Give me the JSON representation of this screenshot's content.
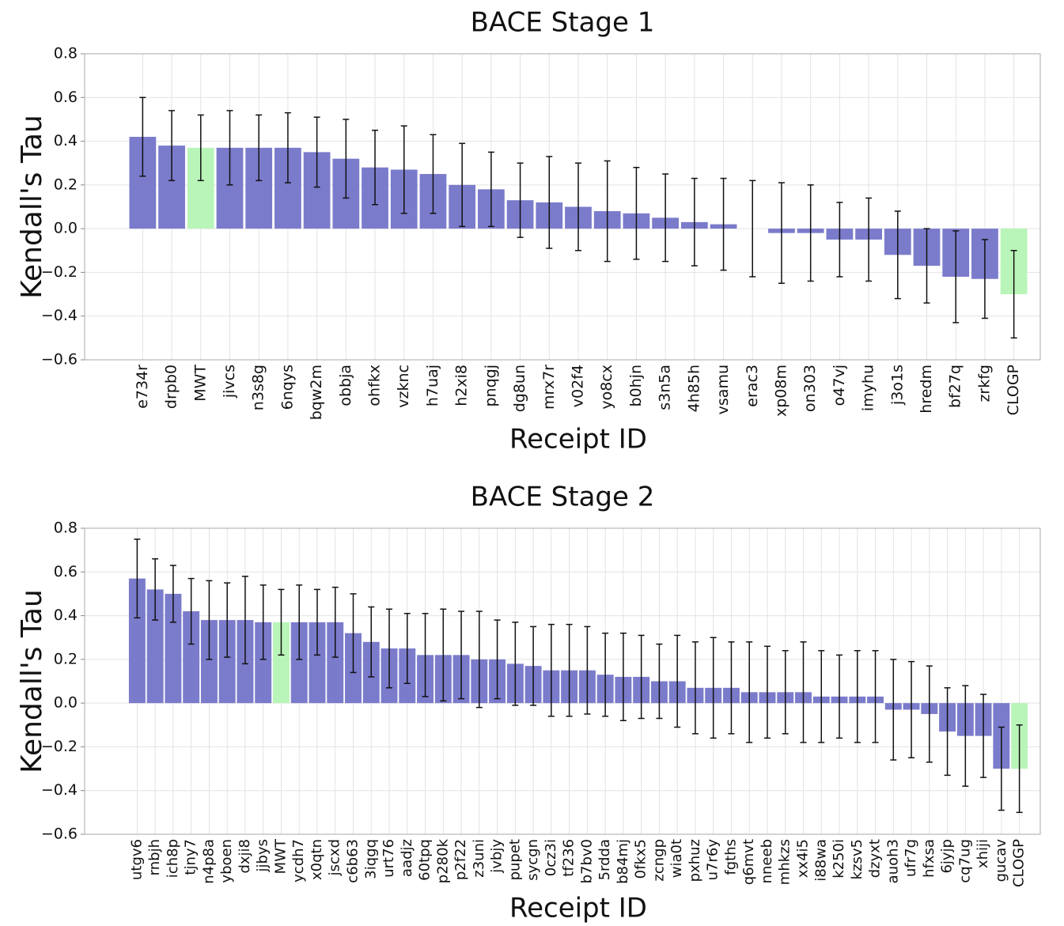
{
  "chart_data": [
    {
      "type": "bar",
      "title": "BACE Stage 1",
      "xlabel": "Receipt ID",
      "ylabel": "Kendall's Tau",
      "categories": [
        "e734r",
        "drpb0",
        "MWT",
        "jivcs",
        "n3s8g",
        "6nqys",
        "bqw2m",
        "obbja",
        "ohfkx",
        "vzknc",
        "h7uaj",
        "h2xi8",
        "pnqgj",
        "dg8un",
        "mrx7r",
        "v02f4",
        "yo8cx",
        "b0hjn",
        "s3n5a",
        "4h85h",
        "vsamu",
        "erac3",
        "xp08m",
        "on303",
        "o47vj",
        "imyhu",
        "j3o1s",
        "hredm",
        "bf27q",
        "zrkfg",
        "CLOGP"
      ],
      "values": [
        0.42,
        0.38,
        0.37,
        0.37,
        0.37,
        0.37,
        0.35,
        0.32,
        0.28,
        0.27,
        0.25,
        0.2,
        0.18,
        0.13,
        0.12,
        0.1,
        0.08,
        0.07,
        0.05,
        0.03,
        0.02,
        0.0,
        -0.02,
        -0.02,
        -0.05,
        -0.05,
        -0.12,
        -0.17,
        -0.22,
        -0.23,
        -0.3
      ],
      "errors": [
        0.18,
        0.16,
        0.15,
        0.17,
        0.15,
        0.16,
        0.16,
        0.18,
        0.17,
        0.2,
        0.18,
        0.19,
        0.17,
        0.17,
        0.21,
        0.2,
        0.23,
        0.21,
        0.2,
        0.2,
        0.21,
        0.22,
        0.23,
        0.22,
        0.17,
        0.19,
        0.2,
        0.17,
        0.21,
        0.18,
        0.2
      ],
      "colors": [
        "#7b7bcc",
        "#7b7bcc",
        "#b9f5b9",
        "#7b7bcc",
        "#7b7bcc",
        "#7b7bcc",
        "#7b7bcc",
        "#7b7bcc",
        "#7b7bcc",
        "#7b7bcc",
        "#7b7bcc",
        "#7b7bcc",
        "#7b7bcc",
        "#7b7bcc",
        "#7b7bcc",
        "#7b7bcc",
        "#7b7bcc",
        "#7b7bcc",
        "#7b7bcc",
        "#7b7bcc",
        "#7b7bcc",
        "#7b7bcc",
        "#7b7bcc",
        "#7b7bcc",
        "#7b7bcc",
        "#7b7bcc",
        "#7b7bcc",
        "#7b7bcc",
        "#7b7bcc",
        "#7b7bcc",
        "#b9f5b9"
      ],
      "ylim": [
        -0.6,
        0.8
      ],
      "yticks": [
        {
          "value": -0.6,
          "label": "−0.6"
        },
        {
          "value": -0.4,
          "label": "−0.4"
        },
        {
          "value": -0.2,
          "label": "−0.2"
        },
        {
          "value": 0,
          "label": "0.0"
        },
        {
          "value": 0.2,
          "label": "0.2"
        },
        {
          "value": 0.4,
          "label": "0.4"
        },
        {
          "value": 0.6,
          "label": "0.6"
        },
        {
          "value": 0.8,
          "label": "0.8"
        }
      ],
      "grid": true
    },
    {
      "type": "bar",
      "title": "BACE Stage 2",
      "xlabel": "Receipt ID",
      "ylabel": "Kendall's Tau",
      "categories": [
        "utgv6",
        "rnbjh",
        "ich8p",
        "tjny7",
        "n4p8a",
        "yboen",
        "dxji8",
        "jjbys",
        "MWT",
        "ycdh7",
        "x0qtn",
        "jscxd",
        "c6b63",
        "3iqgq",
        "urt76",
        "aadjz",
        "60tpq",
        "p280k",
        "p2f22",
        "z3uni",
        "jvbjy",
        "pupet",
        "sycgn",
        "0cz3i",
        "tf236",
        "b7bv0",
        "5rdda",
        "b84mj",
        "0fkx5",
        "zcngp",
        "wia0t",
        "pxhuz",
        "u7r6y",
        "fgths",
        "q6mvt",
        "nneeb",
        "mhkzs",
        "xx4i5",
        "i88wa",
        "k250i",
        "kzsv5",
        "dzyxt",
        "auoh3",
        "ufr7g",
        "hfxsa",
        "6jyjp",
        "cq7ug",
        "xhiji",
        "gucav",
        "CLOGP"
      ],
      "values": [
        0.57,
        0.52,
        0.5,
        0.42,
        0.38,
        0.38,
        0.38,
        0.37,
        0.37,
        0.37,
        0.37,
        0.37,
        0.32,
        0.28,
        0.25,
        0.25,
        0.22,
        0.22,
        0.22,
        0.2,
        0.2,
        0.18,
        0.17,
        0.15,
        0.15,
        0.15,
        0.13,
        0.12,
        0.12,
        0.1,
        0.1,
        0.07,
        0.07,
        0.07,
        0.05,
        0.05,
        0.05,
        0.05,
        0.03,
        0.03,
        0.03,
        0.03,
        -0.03,
        -0.03,
        -0.05,
        -0.13,
        -0.15,
        -0.15,
        -0.3,
        -0.3
      ],
      "errors": [
        0.18,
        0.14,
        0.13,
        0.15,
        0.18,
        0.17,
        0.2,
        0.17,
        0.15,
        0.17,
        0.15,
        0.16,
        0.18,
        0.16,
        0.18,
        0.16,
        0.19,
        0.21,
        0.2,
        0.22,
        0.18,
        0.19,
        0.18,
        0.21,
        0.21,
        0.2,
        0.19,
        0.2,
        0.19,
        0.17,
        0.21,
        0.21,
        0.23,
        0.21,
        0.23,
        0.21,
        0.19,
        0.23,
        0.21,
        0.19,
        0.21,
        0.21,
        0.23,
        0.22,
        0.22,
        0.2,
        0.23,
        0.19,
        0.19,
        0.2
      ],
      "colors": [
        "#7b7bcc",
        "#7b7bcc",
        "#7b7bcc",
        "#7b7bcc",
        "#7b7bcc",
        "#7b7bcc",
        "#7b7bcc",
        "#7b7bcc",
        "#b9f5b9",
        "#7b7bcc",
        "#7b7bcc",
        "#7b7bcc",
        "#7b7bcc",
        "#7b7bcc",
        "#7b7bcc",
        "#7b7bcc",
        "#7b7bcc",
        "#7b7bcc",
        "#7b7bcc",
        "#7b7bcc",
        "#7b7bcc",
        "#7b7bcc",
        "#7b7bcc",
        "#7b7bcc",
        "#7b7bcc",
        "#7b7bcc",
        "#7b7bcc",
        "#7b7bcc",
        "#7b7bcc",
        "#7b7bcc",
        "#7b7bcc",
        "#7b7bcc",
        "#7b7bcc",
        "#7b7bcc",
        "#7b7bcc",
        "#7b7bcc",
        "#7b7bcc",
        "#7b7bcc",
        "#7b7bcc",
        "#7b7bcc",
        "#7b7bcc",
        "#7b7bcc",
        "#7b7bcc",
        "#7b7bcc",
        "#7b7bcc",
        "#7b7bcc",
        "#7b7bcc",
        "#7b7bcc",
        "#7b7bcc",
        "#b9f5b9"
      ],
      "ylim": [
        -0.6,
        0.8
      ],
      "yticks": [
        {
          "value": -0.6,
          "label": "−0.6"
        },
        {
          "value": -0.4,
          "label": "−0.4"
        },
        {
          "value": -0.2,
          "label": "−0.2"
        },
        {
          "value": 0,
          "label": "0.0"
        },
        {
          "value": 0.2,
          "label": "0.2"
        },
        {
          "value": 0.4,
          "label": "0.4"
        },
        {
          "value": 0.6,
          "label": "0.6"
        },
        {
          "value": 0.8,
          "label": "0.8"
        }
      ],
      "grid": true
    }
  ]
}
